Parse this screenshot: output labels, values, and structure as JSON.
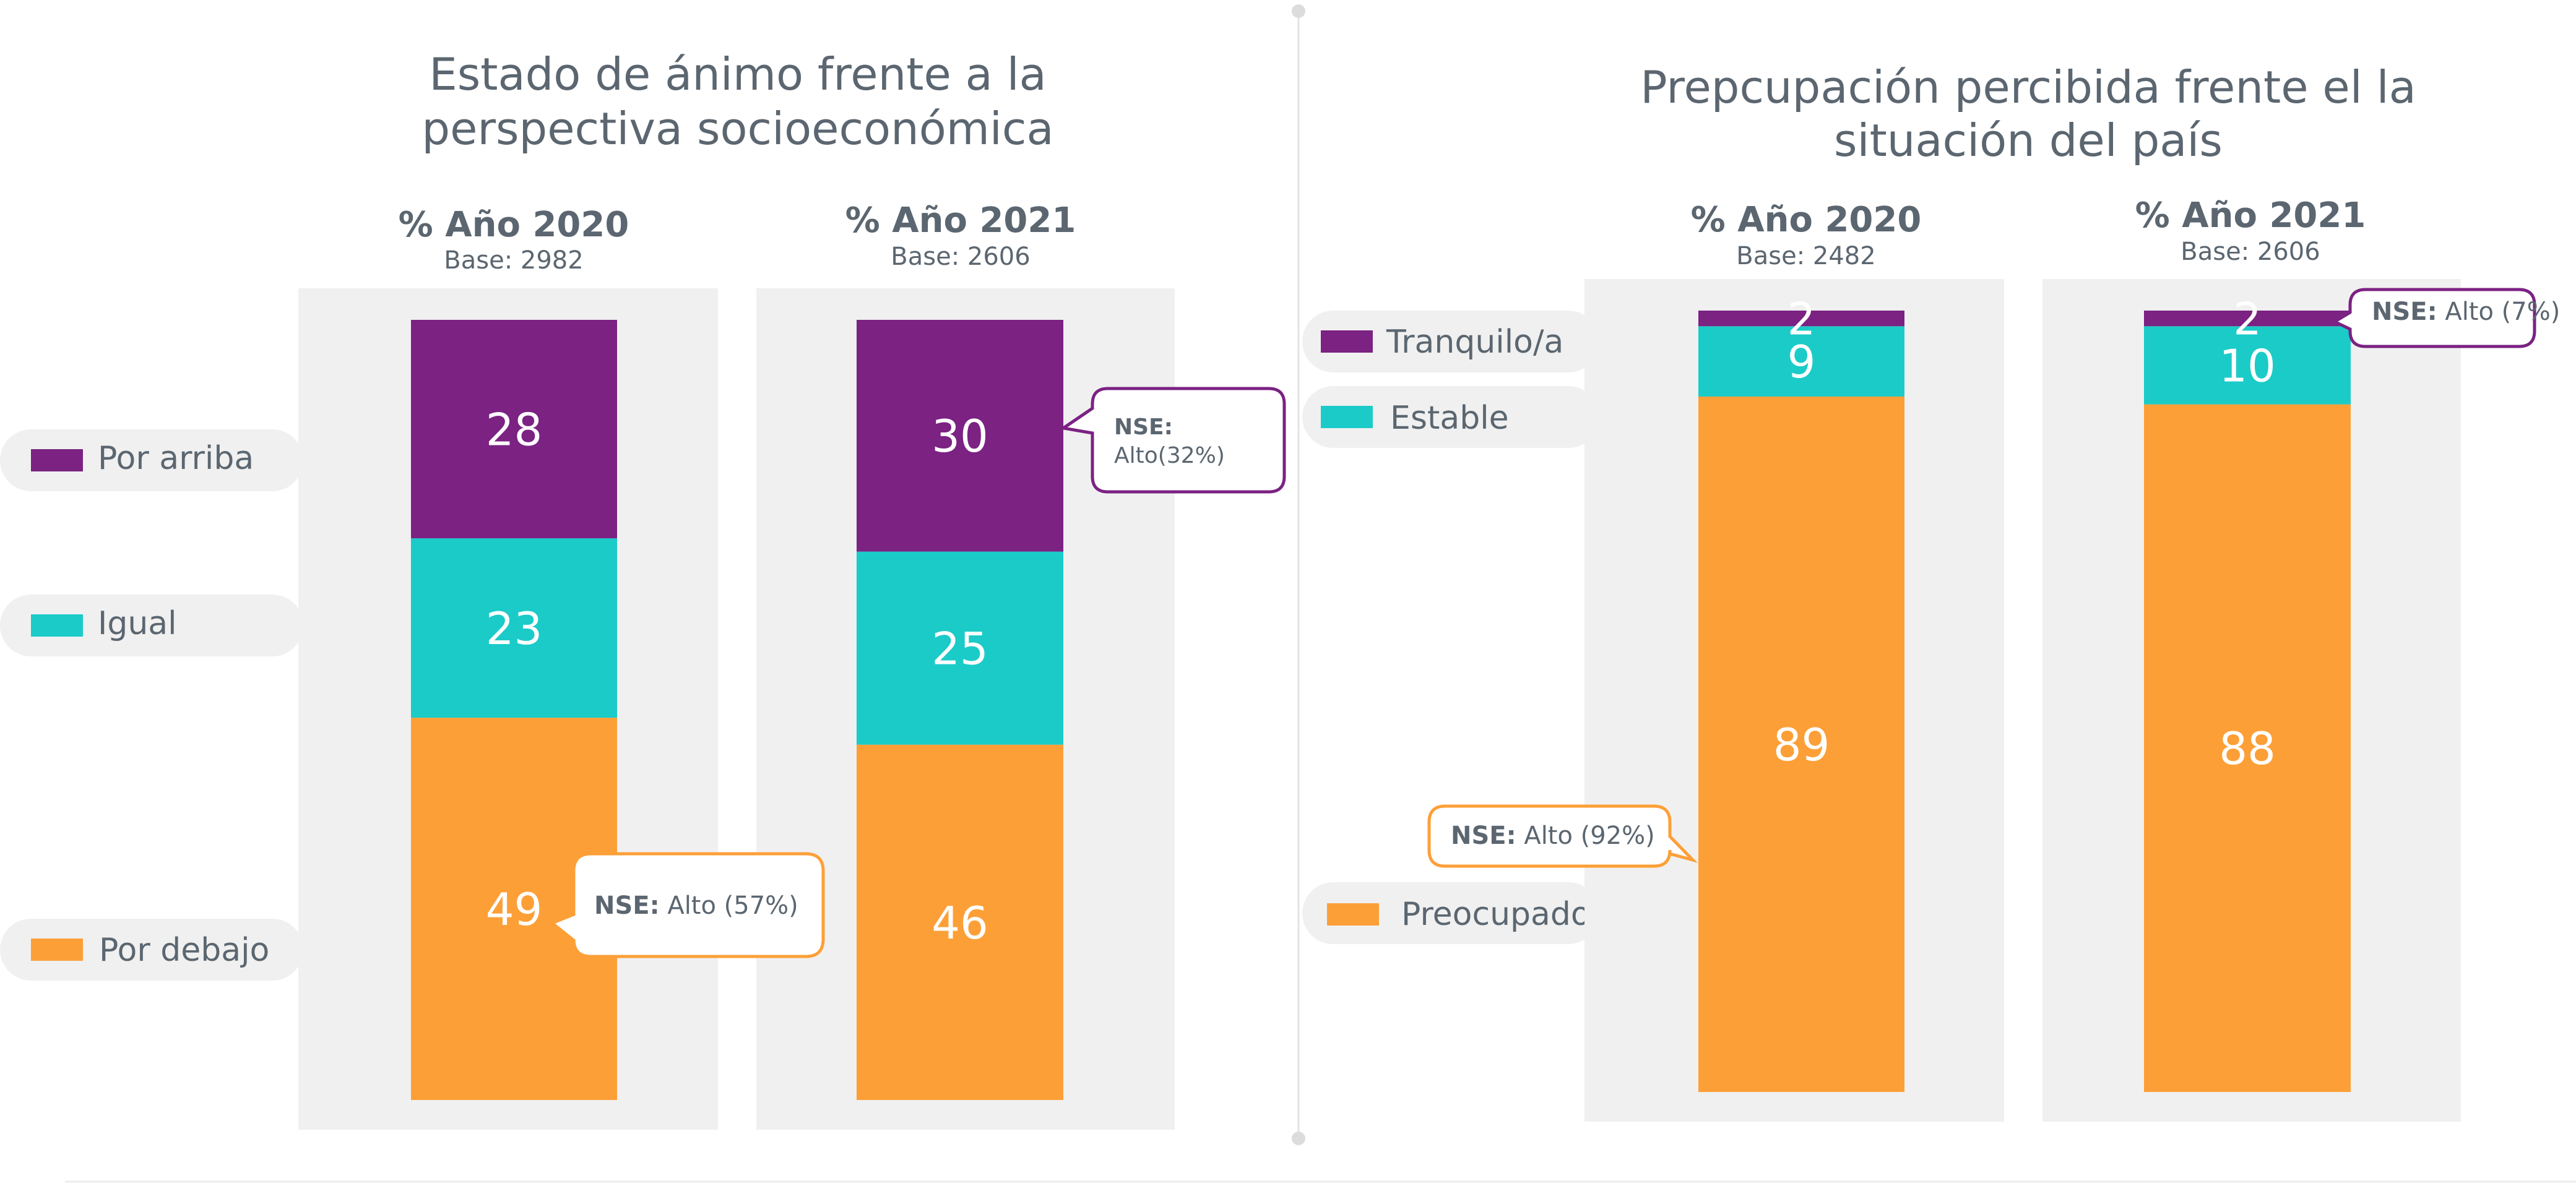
{
  "colors": {
    "purple": "#7b2283",
    "teal": "#1bcbc8",
    "orange": "#fd9f37",
    "panel_bg": "#f0f0f0",
    "title_text": "#5b6670"
  },
  "chart_data": [
    {
      "type": "bar",
      "stacked": true,
      "title": "Estado de ánimo frente a la perspectiva socioeconómica",
      "title_lines": [
        "Estado de ánimo frente a la",
        "perspectiva socioeconómica"
      ],
      "categories": [
        "% Año 2020",
        "% Año 2021"
      ],
      "bases": [
        "Base: 2982",
        "Base: 2606"
      ],
      "series": [
        {
          "name": "Por debajo",
          "color": "#fd9f37",
          "values": [
            49,
            46
          ]
        },
        {
          "name": "Igual",
          "color": "#1bcbc8",
          "values": [
            23,
            25
          ]
        },
        {
          "name": "Por arriba",
          "color": "#7b2283",
          "values": [
            28,
            30
          ]
        }
      ],
      "annotations": [
        {
          "category": 0,
          "series": "Por debajo",
          "bold": "NSE:",
          "text": " Alto (57%)",
          "color": "#fd9f37"
        },
        {
          "category": 1,
          "series": "Por arriba",
          "bold": "NSE:",
          "text": "Alto(32%)",
          "color": "#7b2283"
        }
      ],
      "legend": "left"
    },
    {
      "type": "bar",
      "stacked": true,
      "title": "Prepcupación percibida frente el la situación del país",
      "title_lines": [
        "Prepcupación percibida frente el la",
        "situación del país"
      ],
      "categories": [
        "% Año 2020",
        "% Año 2021"
      ],
      "bases": [
        "Base: 2482",
        "Base: 2606"
      ],
      "series": [
        {
          "name": "Preocupado/a",
          "color": "#fd9f37",
          "values": [
            89,
            88
          ]
        },
        {
          "name": "Estable",
          "color": "#1bcbc8",
          "values": [
            9,
            10
          ]
        },
        {
          "name": "Tranquilo/a",
          "color": "#7b2283",
          "values": [
            2,
            2
          ]
        }
      ],
      "annotations": [
        {
          "category": 0,
          "series": "Preocupado/a",
          "bold": "NSE:",
          "text": " Alto (92%)",
          "color": "#fd9f37"
        },
        {
          "category": 1,
          "series": "Tranquilo/a",
          "bold": "NSE:",
          "text": " Alto (7%)",
          "color": "#7b2283"
        }
      ],
      "legend": "left"
    }
  ]
}
